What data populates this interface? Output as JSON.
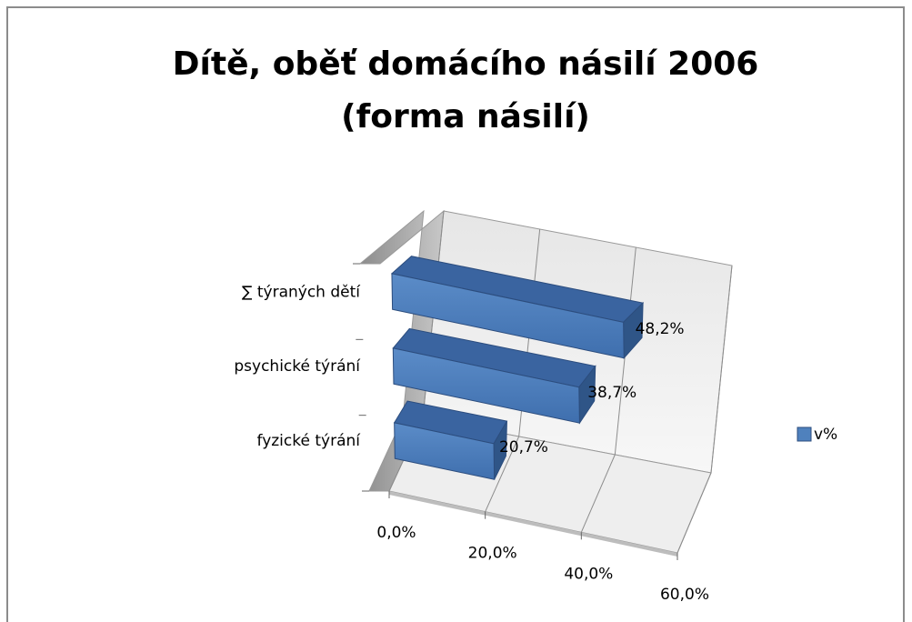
{
  "chart_data": {
    "type": "bar3d",
    "title": [
      "Dítě, oběť domácího násilí 2006",
      "(forma násilí)"
    ],
    "categories": [
      "fyzické týrání",
      "psychické týrání",
      "∑ týraných dětí"
    ],
    "series": [
      {
        "name": "v%",
        "color": "#4f81bd",
        "values": [
          20.7,
          38.7,
          48.2
        ],
        "value_labels": [
          "20,7%",
          "38,7%",
          "48,2%"
        ]
      }
    ],
    "xlim": [
      0,
      60
    ],
    "xticks": [
      {
        "value": 0,
        "label": "0,0%"
      },
      {
        "value": 20,
        "label": "20,0%"
      },
      {
        "value": 40,
        "label": "40,0%"
      },
      {
        "value": 60,
        "label": "60,0%"
      }
    ],
    "grid": true,
    "legend": "right"
  }
}
